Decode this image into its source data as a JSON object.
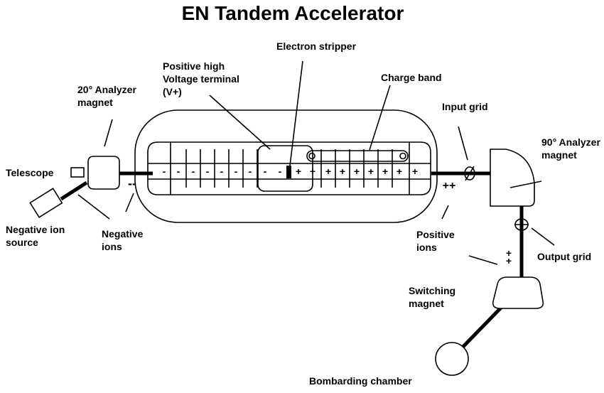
{
  "title": "EN Tandem Accelerator",
  "labels": {
    "analyzer20": [
      "20° Analyzer",
      "magnet"
    ],
    "terminal": [
      "Positive high",
      "Voltage terminal",
      "(V+)"
    ],
    "stripper": "Electron stripper",
    "charge_band": "Charge band",
    "input_grid": "Input grid",
    "analyzer90": [
      "90° Analyzer",
      "magnet"
    ],
    "telescope": "Telescope",
    "neg_source": [
      "Negative ion",
      "source"
    ],
    "neg_ions": [
      "Negative",
      "ions"
    ],
    "pos_ions": [
      "Positive",
      "ions"
    ],
    "output_grid": "Output grid",
    "switching": [
      "Switching",
      "magnet"
    ],
    "chamber": "Bombarding chamber"
  },
  "signs": {
    "neg_ions_mark": "--",
    "pos_ions_mark": "++",
    "pos_ions_vertical": [
      "+",
      "+"
    ],
    "stripper_minus": "-",
    "stripper_plus": "+",
    "left_tube_signs": [
      "-",
      "-",
      "-",
      "-",
      "-",
      "-",
      "-",
      "-"
    ],
    "right_tube_signs": [
      "+",
      "+",
      "+",
      "+",
      "+",
      "+",
      "+",
      "+"
    ]
  }
}
